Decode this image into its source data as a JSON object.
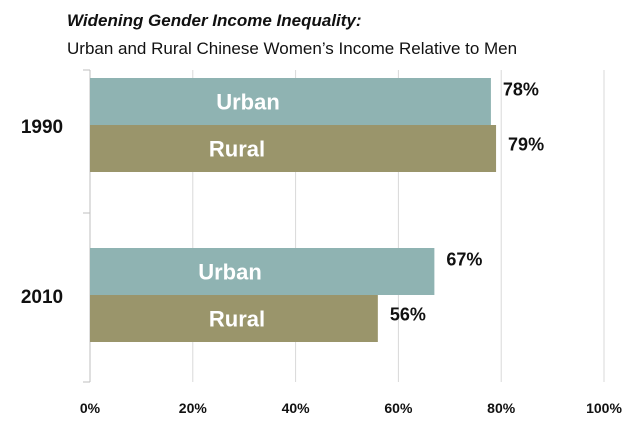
{
  "header": {
    "title": "Widening Gender Income Inequality:",
    "subtitle": "Urban and Rural Chinese Women’s Income Relative to Men"
  },
  "colors": {
    "urban": "#8fb3b2",
    "rural": "#9a956b",
    "grid": "#d9d9d9",
    "axis": "#bfbfbf"
  },
  "chart_data": {
    "type": "bar",
    "orientation": "horizontal",
    "title": "Widening Gender Income Inequality:",
    "subtitle": "Urban and Rural Chinese Women’s Income Relative to Men",
    "categories": [
      "1990",
      "2010"
    ],
    "series": [
      {
        "name": "Urban",
        "values": [
          78,
          67
        ],
        "value_labels": [
          "78%",
          "67%"
        ]
      },
      {
        "name": "Rural",
        "values": [
          79,
          56
        ],
        "value_labels": [
          "79%",
          "56%"
        ]
      }
    ],
    "x_ticks": [
      "0%",
      "20%",
      "40%",
      "60%",
      "80%",
      "100%"
    ],
    "xlim": [
      0,
      100
    ],
    "xlabel": "",
    "ylabel": "",
    "grid": true
  }
}
